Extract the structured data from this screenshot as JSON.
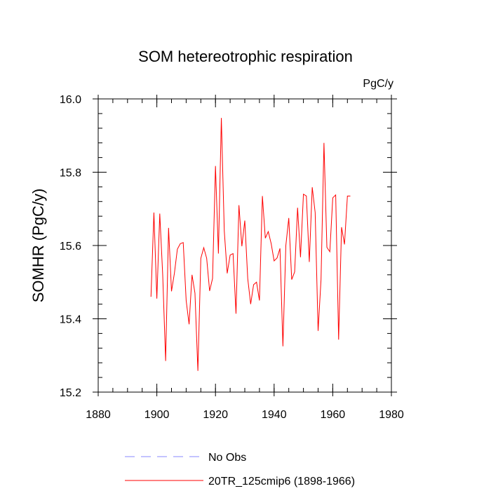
{
  "chart_data": {
    "type": "line",
    "title": "SOM hetereotrophic respiration",
    "units_label": "PgC/y",
    "ylabel": "SOMHR  (PgC/y)",
    "xlabel": "",
    "xlim": [
      1880,
      1980
    ],
    "ylim": [
      15.2,
      16.0
    ],
    "x_ticks": [
      "1880",
      "1900",
      "1920",
      "1940",
      "1960",
      "1980"
    ],
    "y_ticks": [
      "15.2",
      "15.4",
      "15.6",
      "15.8",
      "16.0"
    ],
    "x_tick_values": [
      1880,
      1900,
      1920,
      1940,
      1960,
      1980
    ],
    "y_tick_values": [
      15.2,
      15.4,
      15.6,
      15.8,
      16.0
    ],
    "x_minor_step": 5,
    "y_minor_step": 0.04,
    "legend": [
      {
        "label": "No Obs",
        "color": "#8a8aff",
        "style": "dashed"
      },
      {
        "label": "20TR_125cmip6 (1898-1966)",
        "color": "#ff0000",
        "style": "solid"
      }
    ],
    "series": [
      {
        "name": "20TR_125cmip6 (1898-1966)",
        "color": "#ff0000",
        "x": [
          1898,
          1899,
          1900,
          1901,
          1902,
          1903,
          1904,
          1905,
          1906,
          1907,
          1908,
          1909,
          1910,
          1911,
          1912,
          1913,
          1914,
          1915,
          1916,
          1917,
          1918,
          1919,
          1920,
          1921,
          1922,
          1923,
          1924,
          1925,
          1926,
          1927,
          1928,
          1929,
          1930,
          1931,
          1932,
          1933,
          1934,
          1935,
          1936,
          1937,
          1938,
          1939,
          1940,
          1941,
          1942,
          1943,
          1944,
          1945,
          1946,
          1947,
          1948,
          1949,
          1950,
          1951,
          1952,
          1953,
          1954,
          1955,
          1956,
          1957,
          1958,
          1959,
          1960,
          1961,
          1962,
          1963,
          1964,
          1965,
          1966
        ],
        "values": [
          15.46,
          15.69,
          15.455,
          15.687,
          15.52,
          15.285,
          15.648,
          15.475,
          15.525,
          15.59,
          15.605,
          15.608,
          15.45,
          15.385,
          15.52,
          15.47,
          15.258,
          15.565,
          15.594,
          15.565,
          15.476,
          15.51,
          15.817,
          15.578,
          15.948,
          15.64,
          15.524,
          15.574,
          15.578,
          15.414,
          15.71,
          15.598,
          15.668,
          15.51,
          15.44,
          15.493,
          15.5,
          15.45,
          15.735,
          15.62,
          15.638,
          15.605,
          15.558,
          15.566,
          15.592,
          15.325,
          15.6,
          15.675,
          15.507,
          15.528,
          15.703,
          15.568,
          15.74,
          15.735,
          15.555,
          15.759,
          15.69,
          15.367,
          15.507,
          15.88,
          15.595,
          15.583,
          15.73,
          15.738,
          15.343,
          15.65,
          15.603,
          15.735,
          15.735
        ]
      }
    ]
  }
}
